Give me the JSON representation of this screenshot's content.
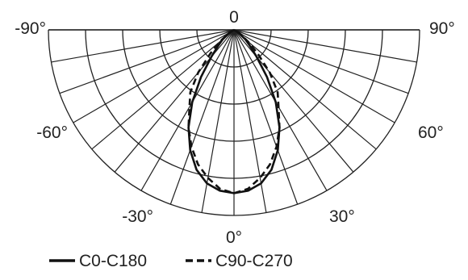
{
  "chart_data": {
    "type": "polar",
    "layout": "half-polar",
    "grid": true,
    "radial_max": 1.0,
    "radial_rings": [
      0.2,
      0.4,
      0.6,
      0.8,
      1.0
    ],
    "angle_spokes": [
      -90,
      -80,
      -70,
      -60,
      -50,
      -40,
      -30,
      -20,
      -10,
      0,
      10,
      20,
      30,
      40,
      50,
      60,
      70,
      80,
      90
    ],
    "angle_labels": [
      {
        "angle": 0,
        "text": "0",
        "position": "top"
      },
      {
        "angle": -90,
        "text": "-90°",
        "position": "top-left"
      },
      {
        "angle": 90,
        "text": "90°",
        "position": "top-right"
      },
      {
        "angle": -60,
        "text": "-60°",
        "position": "left"
      },
      {
        "angle": 60,
        "text": "60°",
        "position": "right"
      },
      {
        "angle": -30,
        "text": "-30°",
        "position": "bottom-left"
      },
      {
        "angle": 30,
        "text": "30°",
        "position": "bottom-right"
      },
      {
        "angle": 0,
        "text": "0°",
        "position": "bottom"
      }
    ],
    "legend_position": "bottom",
    "series": [
      {
        "name": "C0-C180",
        "line_style": "solid",
        "color": "#111111",
        "angles": [
          -90,
          -70,
          -60,
          -50,
          -45,
          -40,
          -35,
          -30,
          -25,
          -20,
          -15,
          -10,
          -5,
          0,
          5,
          10,
          15,
          20,
          25,
          30,
          35,
          40,
          45,
          50,
          60,
          70,
          90
        ],
        "values": [
          0,
          0,
          0.02,
          0.08,
          0.12,
          0.19,
          0.31,
          0.45,
          0.58,
          0.69,
          0.78,
          0.84,
          0.87,
          0.88,
          0.87,
          0.84,
          0.78,
          0.69,
          0.58,
          0.45,
          0.31,
          0.19,
          0.12,
          0.08,
          0.02,
          0,
          0
        ]
      },
      {
        "name": "C90-C270",
        "line_style": "dashed",
        "color": "#111111",
        "angles": [
          -90,
          -70,
          -60,
          -50,
          -45,
          -40,
          -35,
          -30,
          -25,
          -20,
          -15,
          -10,
          -5,
          0,
          5,
          10,
          15,
          20,
          25,
          30,
          35,
          40,
          45,
          50,
          60,
          70,
          90
        ],
        "values": [
          0,
          0,
          0.03,
          0.1,
          0.18,
          0.3,
          0.41,
          0.48,
          0.58,
          0.67,
          0.75,
          0.81,
          0.86,
          0.88,
          0.86,
          0.81,
          0.75,
          0.67,
          0.58,
          0.48,
          0.41,
          0.3,
          0.18,
          0.1,
          0.03,
          0,
          0
        ]
      }
    ]
  }
}
